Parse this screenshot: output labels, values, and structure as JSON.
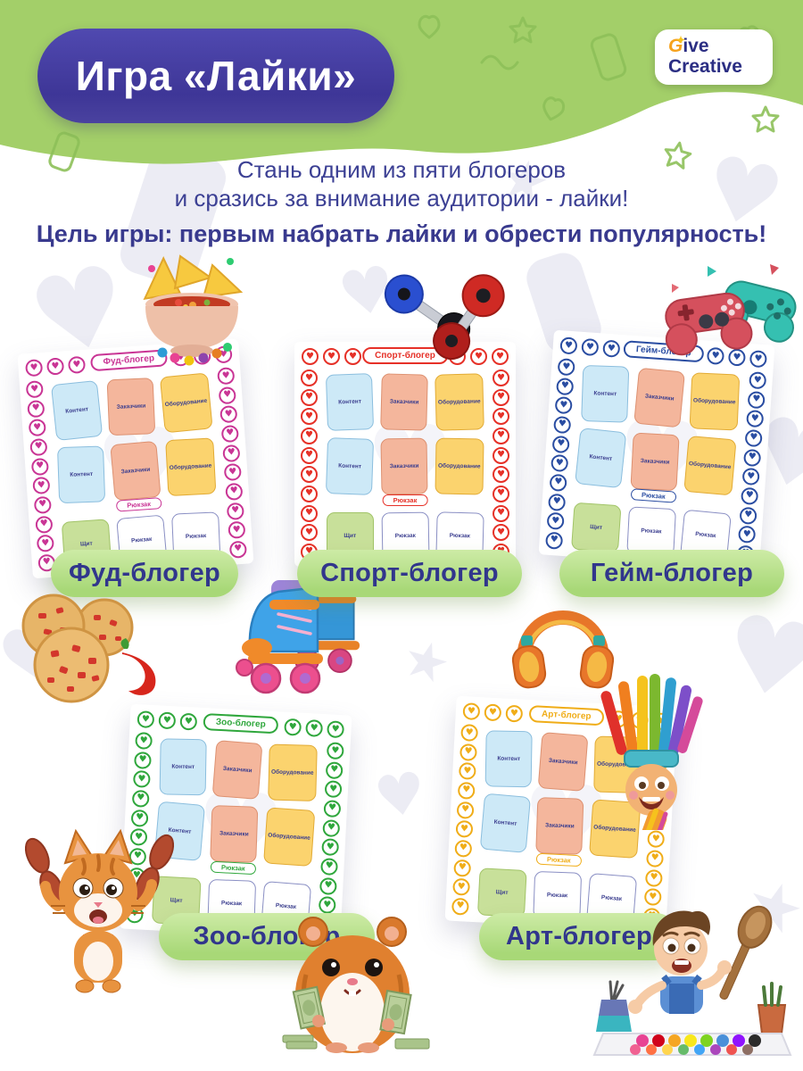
{
  "header": {
    "title": "Игра «Лайки»",
    "band_color": "#a3cf69",
    "title_pill_color": "#433ba0",
    "logo": {
      "accent_letter": "G",
      "word1_rest": "ive",
      "word2": "Creative",
      "accent_color": "#f6a21d",
      "text_color": "#2b2e83"
    }
  },
  "intro": {
    "line1": "Стань одним из пяти блогеров",
    "line2": "и сразись за внимание аудитории - лайки!",
    "goal": "Цель игры: первым набрать лайки и обрести популярность!",
    "text_color": "#3c4094"
  },
  "cell_labels": {
    "content": "Контент",
    "clients": "Заказчики",
    "equipment": "Оборудование",
    "backpack": "Рюкзак",
    "shield": "Щит"
  },
  "boards": [
    {
      "title": "Фуд-блогер",
      "accent": "#c93595",
      "style_vars": "--accent:#c93595"
    },
    {
      "title": "Спорт-блогер",
      "accent": "#e63128",
      "style_vars": "--accent:#e63128"
    },
    {
      "title": "Гейм-блогер",
      "accent": "#2a4da2",
      "style_vars": "--accent:#2a4da2"
    },
    {
      "title": "Зоо-блогер",
      "accent": "#2fa73c",
      "style_vars": "--accent:#2fa73c"
    },
    {
      "title": "Арт-блогер",
      "accent": "#f0ad18",
      "style_vars": "--accent:#f0ad18"
    }
  ],
  "name_pill_color": "#b9e18e",
  "icons": {
    "heart": "♥",
    "logo_star": "✦",
    "illustrations": [
      "salsa-bowl-image",
      "dumbbells-image",
      "gamepads-image",
      "cookies-chili-image",
      "roller-skate-image",
      "headphones-image",
      "cat-sausages-image",
      "hamster-money-image",
      "paintbrush-character-image",
      "boy-painter-image"
    ]
  }
}
